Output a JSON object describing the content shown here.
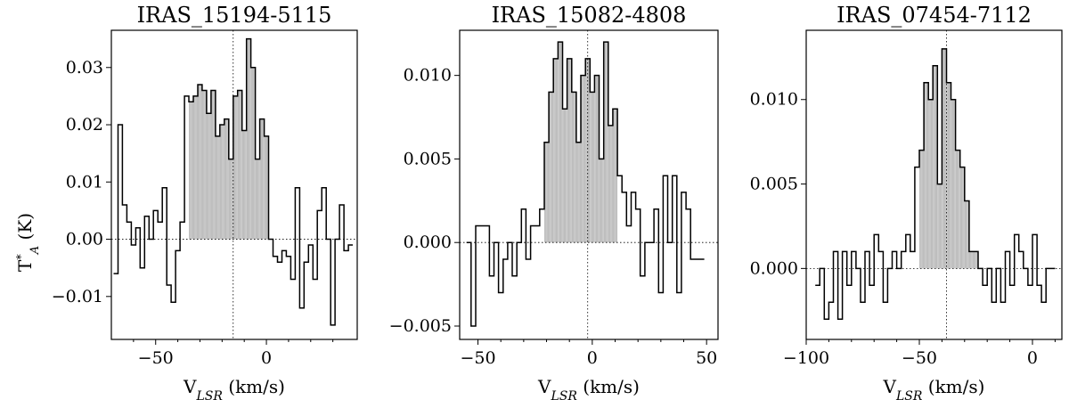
{
  "figure": {
    "ylabel": "T",
    "ylabel_sup": "*",
    "ylabel_sub": "A",
    "ylabel_unit": " (K)"
  },
  "chart_data": [
    {
      "type": "line",
      "drawstyle": "steps",
      "title": "IRAS_15194-5115",
      "xlabel": "V",
      "xlabel_sub": "LSR",
      "xlabel_unit": " (km/s)",
      "xlim": [
        -70,
        41
      ],
      "ylim": [
        -0.0175,
        0.0365
      ],
      "xticks": [
        -50,
        0
      ],
      "xtick_labels": [
        "−50",
        "0"
      ],
      "yticks": [
        -0.01,
        0.0,
        0.01,
        0.02,
        0.03
      ],
      "ytick_labels": [
        "−0.01",
        "0.00",
        "0.01",
        "0.02",
        "0.03"
      ],
      "minor_xticks": [
        -60,
        -40,
        -30,
        -20,
        -10,
        10,
        20,
        30
      ],
      "vline_x": -15,
      "fill_range": [
        -36,
        3
      ],
      "x": [
        -68,
        -66,
        -64,
        -62,
        -60,
        -58,
        -56,
        -54,
        -52,
        -50,
        -48,
        -46,
        -44,
        -42,
        -40,
        -38,
        -36,
        -34,
        -32,
        -30,
        -28,
        -26,
        -24,
        -22,
        -20,
        -18,
        -16,
        -14,
        -12,
        -10,
        -8,
        -6,
        -4,
        -2,
        0,
        2,
        4,
        6,
        8,
        10,
        12,
        14,
        16,
        18,
        20,
        22,
        24,
        26,
        28,
        30,
        32,
        34,
        36,
        38
      ],
      "y": [
        -0.006,
        0.02,
        0.006,
        0.003,
        -0.001,
        0.002,
        -0.005,
        0.004,
        0.0,
        0.005,
        0.003,
        0.009,
        -0.008,
        -0.011,
        -0.002,
        0.003,
        0.025,
        0.024,
        0.025,
        0.027,
        0.026,
        0.022,
        0.026,
        0.018,
        0.02,
        0.021,
        0.014,
        0.025,
        0.026,
        0.019,
        0.035,
        0.03,
        0.014,
        0.021,
        0.018,
        0.0,
        -0.003,
        -0.004,
        -0.002,
        -0.003,
        -0.007,
        0.009,
        -0.012,
        -0.004,
        -0.001,
        -0.007,
        0.005,
        0.009,
        0.0,
        -0.015,
        0.0,
        0.006,
        -0.002,
        -0.001
      ],
      "step": 2
    },
    {
      "type": "line",
      "drawstyle": "steps",
      "title": "IRAS_15082-4808",
      "xlabel": "V",
      "xlabel_sub": "LSR",
      "xlabel_unit": " (km/s)",
      "xlim": [
        -58,
        55
      ],
      "ylim": [
        -0.0058,
        0.0127
      ],
      "xticks": [
        -50,
        0,
        50
      ],
      "xtick_labels": [
        "−50",
        "0",
        "50"
      ],
      "yticks": [
        -0.005,
        0.0,
        0.005,
        0.01
      ],
      "ytick_labels": [
        "−0.005",
        "0.000",
        "0.005",
        "0.010"
      ],
      "minor_xticks": [
        -40,
        -30,
        -20,
        -10,
        10,
        20,
        30,
        40
      ],
      "vline_x": -2,
      "fill_range": [
        -22,
        11
      ],
      "x": [
        -54,
        -52,
        -50,
        -48,
        -46,
        -44,
        -42,
        -40,
        -38,
        -36,
        -34,
        -32,
        -30,
        -28,
        -26,
        -24,
        -22,
        -20,
        -18,
        -16,
        -14,
        -12,
        -10,
        -8,
        -6,
        -4,
        -2,
        0,
        2,
        4,
        6,
        8,
        10,
        12,
        14,
        16,
        18,
        20,
        22,
        24,
        26,
        28,
        30,
        32,
        34,
        36,
        38,
        40,
        42,
        44,
        46,
        48
      ],
      "y": [
        0.0,
        -0.005,
        0.001,
        0.001,
        0.001,
        -0.002,
        0.0,
        -0.003,
        -0.001,
        0.0,
        -0.002,
        0.0,
        0.002,
        -0.001,
        0.001,
        0.001,
        0.002,
        0.006,
        0.009,
        0.011,
        0.012,
        0.008,
        0.011,
        0.009,
        0.006,
        0.01,
        0.011,
        0.009,
        0.01,
        0.005,
        0.012,
        0.007,
        0.008,
        0.004,
        0.003,
        0.001,
        0.003,
        0.002,
        -0.002,
        0.0,
        0.0,
        0.002,
        -0.003,
        0.004,
        0.0,
        0.004,
        -0.003,
        0.003,
        0.002,
        -0.001,
        -0.001,
        -0.001
      ],
      "step": 2
    },
    {
      "type": "line",
      "drawstyle": "steps",
      "title": "IRAS_07454-7112",
      "xlabel": "V",
      "xlabel_sub": "LSR",
      "xlabel_unit": " (km/s)",
      "xlim": [
        -100,
        13
      ],
      "ylim": [
        -0.0042,
        0.0141
      ],
      "xticks": [
        -100,
        -50,
        0
      ],
      "xtick_labels": [
        "−100",
        "−50",
        "0"
      ],
      "yticks": [
        0.0,
        0.005,
        0.01
      ],
      "ytick_labels": [
        "0.000",
        "0.005",
        "0.010"
      ],
      "minor_xticks": [
        -90,
        -80,
        -70,
        -60,
        -40,
        -30,
        -20,
        -10,
        10
      ],
      "vline_x": -38,
      "fill_range": [
        -51,
        -24
      ],
      "x": [
        -95,
        -93,
        -91,
        -89,
        -87,
        -85,
        -83,
        -81,
        -79,
        -77,
        -75,
        -73,
        -71,
        -69,
        -67,
        -65,
        -63,
        -61,
        -59,
        -57,
        -55,
        -53,
        -51,
        -49,
        -47,
        -45,
        -43,
        -41,
        -39,
        -37,
        -35,
        -33,
        -31,
        -29,
        -27,
        -25,
        -23,
        -21,
        -19,
        -17,
        -15,
        -13,
        -11,
        -9,
        -7,
        -5,
        -3,
        -1,
        1,
        3,
        5,
        7,
        9
      ],
      "y": [
        -0.001,
        0.0,
        -0.003,
        -0.002,
        0.001,
        -0.003,
        0.001,
        -0.001,
        0.001,
        0.0,
        -0.002,
        0.001,
        -0.001,
        0.002,
        0.001,
        -0.002,
        0.0,
        0.001,
        0.0,
        0.001,
        0.002,
        0.001,
        0.006,
        0.007,
        0.011,
        0.01,
        0.012,
        0.005,
        0.013,
        0.011,
        0.01,
        0.007,
        0.006,
        0.004,
        0.001,
        0.001,
        0.0,
        -0.001,
        0.0,
        -0.002,
        0.0,
        -0.002,
        0.001,
        -0.001,
        0.002,
        0.001,
        0.0,
        -0.001,
        0.002,
        -0.001,
        -0.002,
        0.0,
        0.0
      ],
      "step": 2
    }
  ]
}
